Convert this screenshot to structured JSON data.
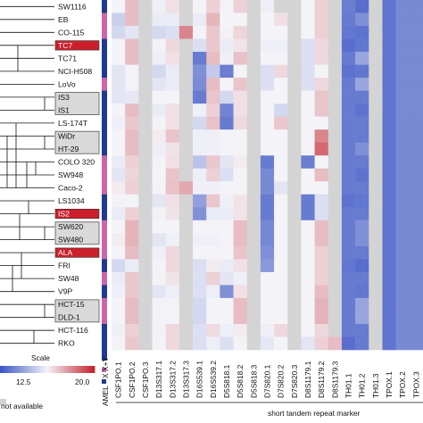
{
  "chart_data": {
    "type": "heatmap",
    "xlabel": "short tandem repeat marker",
    "scale_label": "Scale",
    "na_label": "not available",
    "scale_ticks": [
      "12.5",
      "20.0"
    ],
    "colors": {
      "low": "#3b55c4",
      "mid": "#f4f4f8",
      "high": "#c4222e",
      "na": "#d4d4d4",
      "red_label_box": "#cc1f2b",
      "group_box": "#d9d9d9"
    },
    "rows": [
      {
        "label": "SW1116",
        "highlight": "none"
      },
      {
        "label": "EB",
        "highlight": "none"
      },
      {
        "label": "CO-115",
        "highlight": "none"
      },
      {
        "label": "TC7",
        "highlight": "red"
      },
      {
        "label": "TC71",
        "highlight": "none"
      },
      {
        "label": "NCI-H508",
        "highlight": "none"
      },
      {
        "label": "LoVo",
        "highlight": "none"
      },
      {
        "label": "IS3",
        "highlight": "group"
      },
      {
        "label": "IS1",
        "highlight": "group"
      },
      {
        "label": "LS-174T",
        "highlight": "none"
      },
      {
        "label": "WiDr",
        "highlight": "group"
      },
      {
        "label": "HT-29",
        "highlight": "group"
      },
      {
        "label": "COLO 320",
        "highlight": "none"
      },
      {
        "label": "SW948",
        "highlight": "none"
      },
      {
        "label": "Caco-2",
        "highlight": "none"
      },
      {
        "label": "LS1034",
        "highlight": "none"
      },
      {
        "label": "IS2",
        "highlight": "red"
      },
      {
        "label": "SW620",
        "highlight": "group"
      },
      {
        "label": "SW480",
        "highlight": "group"
      },
      {
        "label": "ALA",
        "highlight": "red"
      },
      {
        "label": "FRI",
        "highlight": "none"
      },
      {
        "label": "SW48",
        "highlight": "none"
      },
      {
        "label": "V9P",
        "highlight": "none"
      },
      {
        "label": "HCT-15",
        "highlight": "group"
      },
      {
        "label": "DLD-1",
        "highlight": "group"
      },
      {
        "label": "HCT-116",
        "highlight": "none"
      },
      {
        "label": "RKO",
        "highlight": "none"
      }
    ],
    "amel": [
      "X",
      "X+Y",
      "X+Y",
      "X",
      "X",
      "X",
      "X+Y",
      "X",
      "X",
      "X",
      "X",
      "X",
      "X+Y",
      "X+Y",
      "X+Y",
      "X",
      "X",
      "X+Y",
      "X+Y",
      "X+Y",
      "X",
      "X+Y",
      "X",
      "X+Y",
      "X+Y",
      "X",
      "X"
    ],
    "amel_label": "AMEL",
    "amel_legend": [
      "X",
      "X+Y"
    ],
    "columns": [
      "CSF1PO.1",
      "CSF1PO.2",
      "CSF1PO.3",
      "D13S317.1",
      "D13S317.2",
      "D13S317.3",
      "D16S539.1",
      "D16S539.2",
      "D5S818.1",
      "D5S818.2",
      "D5S818.3",
      "D7S820.1",
      "D7S820.2",
      "D7S820.3",
      "D8S1179.1",
      "D8S1179.2",
      "D8S1179.3",
      "TH01.1",
      "TH01.2",
      "TH01.3",
      "TPOX.1",
      "TPOX.2",
      "TPOX.3"
    ],
    "values": [
      [
        12.5,
        14.5,
        null,
        12.3,
        13.2,
        null,
        12.4,
        13.8,
        12.4,
        13.7,
        null,
        12.2,
        null,
        null,
        12.5,
        13.8,
        null,
        6.9,
        6.2,
        null,
        6.5,
        7.5,
        7.5
      ],
      [
        10.8,
        14.5,
        null,
        12.1,
        12.1,
        null,
        12.1,
        14.7,
        12.5,
        12.5,
        null,
        12.5,
        13.2,
        null,
        12.5,
        13.8,
        null,
        6.8,
        7.8,
        null,
        6.5,
        7.5,
        7.5
      ],
      [
        11.2,
        11.8,
        null,
        11.2,
        11.5,
        16.5,
        12.4,
        14.1,
        12.6,
        13.6,
        null,
        12.5,
        12.5,
        null,
        12.5,
        13.8,
        null,
        6.6,
        6.4,
        null,
        6.5,
        7.5,
        7.5
      ],
      [
        12.5,
        14.5,
        null,
        12.4,
        13.5,
        null,
        11.5,
        14.1,
        12.1,
        13.1,
        null,
        12.3,
        12.3,
        null,
        11.5,
        13.5,
        null,
        6.2,
        6.6,
        null,
        6.5,
        7.5,
        7.5
      ],
      [
        12.5,
        14.5,
        null,
        12.2,
        13.2,
        null,
        6.8,
        14.5,
        12.3,
        14.3,
        null,
        12.5,
        12.5,
        null,
        11.5,
        13.5,
        null,
        6.8,
        8.8,
        null,
        6.5,
        7.5,
        7.5
      ],
      [
        11.8,
        12.4,
        null,
        11.2,
        12.1,
        null,
        7.8,
        10.5,
        6.9,
        12.5,
        null,
        11.5,
        13.5,
        null,
        11.5,
        12.5,
        null,
        6.4,
        6.6,
        null,
        6.5,
        7.5,
        7.5
      ],
      [
        11.8,
        12.4,
        null,
        11.8,
        12.1,
        null,
        7.6,
        14.5,
        12.5,
        14.2,
        null,
        11.5,
        12.5,
        null,
        11.5,
        13.5,
        null,
        6.8,
        8.8,
        null,
        6.5,
        7.5,
        7.5
      ],
      [
        11.8,
        11.9,
        null,
        12.5,
        12.5,
        null,
        6.8,
        14.2,
        11.2,
        13.2,
        null,
        12.5,
        12.5,
        null,
        12.5,
        14.2,
        null,
        6.8,
        6.8,
        null,
        6.5,
        7.5,
        7.5
      ],
      [
        12.5,
        14.5,
        null,
        12.1,
        13.2,
        null,
        12.3,
        13.8,
        7.2,
        13.2,
        null,
        12.5,
        11.2,
        null,
        12.5,
        14.2,
        null,
        6.8,
        6.4,
        null,
        6.5,
        7.5,
        7.5
      ],
      [
        12.3,
        14.1,
        null,
        12.4,
        13.2,
        null,
        11.2,
        14.3,
        6.8,
        13.5,
        null,
        12.5,
        14.1,
        null,
        12.5,
        12.5,
        null,
        6.8,
        6.8,
        null,
        6.5,
        7.5,
        7.5
      ],
      [
        12.5,
        14.5,
        null,
        12.8,
        14.2,
        null,
        12.3,
        12.3,
        12.5,
        12.5,
        null,
        12.5,
        12.5,
        null,
        12.5,
        16.5,
        null,
        6.8,
        6.8,
        null,
        6.5,
        7.5,
        7.5
      ],
      [
        12.5,
        14.5,
        null,
        12.2,
        13.1,
        null,
        12.3,
        12.3,
        12.5,
        12.5,
        null,
        12.5,
        12.5,
        null,
        12.5,
        17.5,
        null,
        6.8,
        7.8,
        null,
        6.5,
        7.5,
        7.5
      ],
      [
        12.1,
        13.8,
        null,
        12.4,
        13.2,
        null,
        10.2,
        14.1,
        11.8,
        12.8,
        null,
        6.8,
        12.5,
        null,
        6.9,
        12.5,
        null,
        6.8,
        6.8,
        null,
        6.5,
        7.5,
        7.5
      ],
      [
        11.8,
        13.6,
        null,
        12.5,
        14.2,
        null,
        12.2,
        13.8,
        11.5,
        12.5,
        null,
        7.5,
        12.5,
        null,
        12.5,
        14.5,
        null,
        6.8,
        6.4,
        null,
        6.5,
        7.5,
        7.5
      ],
      [
        12.8,
        13.8,
        null,
        12.4,
        14.3,
        15.2,
        12.3,
        12.3,
        12.5,
        12.5,
        null,
        7.5,
        11.8,
        null,
        12.5,
        12.5,
        null,
        6.8,
        6.8,
        null,
        6.5,
        7.5,
        7.5
      ],
      [
        12.4,
        12.4,
        null,
        11.8,
        13.2,
        null,
        8.5,
        14.1,
        12.3,
        13.1,
        null,
        6.8,
        12.5,
        null,
        6.8,
        11.5,
        null,
        6.4,
        6.6,
        null,
        6.5,
        7.5,
        7.5
      ],
      [
        12.1,
        13.8,
        null,
        12.6,
        13.1,
        null,
        7.8,
        12.1,
        12.1,
        13.1,
        null,
        6.8,
        12.5,
        null,
        6.8,
        11.5,
        null,
        6.8,
        6.8,
        null,
        6.5,
        7.5,
        7.5
      ],
      [
        12.5,
        14.8,
        null,
        12.5,
        12.5,
        null,
        12.5,
        12.5,
        12.5,
        14.5,
        null,
        7.4,
        12.5,
        null,
        12.5,
        14.5,
        null,
        6.8,
        7.8,
        null,
        6.5,
        7.5,
        7.5
      ],
      [
        12.8,
        14.8,
        null,
        11.8,
        12.3,
        null,
        12.3,
        12.3,
        12.5,
        14.5,
        null,
        7.4,
        12.5,
        null,
        12.5,
        14.5,
        null,
        6.8,
        7.8,
        null,
        6.5,
        7.5,
        7.5
      ],
      [
        12.5,
        14.5,
        null,
        12.3,
        13.5,
        null,
        12.5,
        12.5,
        12.5,
        14.2,
        null,
        7.8,
        12.5,
        null,
        12.5,
        13.8,
        null,
        6.8,
        6.8,
        null,
        6.5,
        7.5,
        7.5
      ],
      [
        11.2,
        12.1,
        null,
        12.4,
        13.5,
        null,
        11.5,
        12.8,
        12.1,
        13.2,
        null,
        8.2,
        12.5,
        null,
        12.5,
        13.8,
        null,
        6.6,
        6.2,
        null,
        6.5,
        7.5,
        7.5
      ],
      [
        12.1,
        14.1,
        null,
        12.4,
        13.1,
        null,
        11.5,
        13.8,
        11.8,
        12.3,
        null,
        12.5,
        12.5,
        null,
        12.5,
        13.8,
        null,
        6.8,
        6.8,
        null,
        6.5,
        7.5,
        7.5
      ],
      [
        12.3,
        14.1,
        null,
        11.8,
        12.2,
        null,
        11.5,
        12.2,
        7.8,
        13.2,
        null,
        12.5,
        12.5,
        null,
        12.5,
        14.5,
        null,
        6.8,
        6.6,
        null,
        6.5,
        7.5,
        7.5
      ],
      [
        12.5,
        14.5,
        null,
        12.4,
        12.4,
        null,
        11.2,
        12.5,
        12.5,
        14.5,
        null,
        12.5,
        12.5,
        null,
        12.5,
        14.8,
        null,
        6.8,
        8.8,
        null,
        6.5,
        7.5,
        7.5
      ],
      [
        12.5,
        14.5,
        null,
        12.4,
        12.4,
        null,
        11.2,
        12.5,
        12.5,
        14.5,
        null,
        12.5,
        12.5,
        null,
        12.5,
        14.8,
        null,
        6.8,
        8.8,
        null,
        6.5,
        7.5,
        7.5
      ],
      [
        12.3,
        13.8,
        null,
        12.6,
        13.5,
        null,
        11.5,
        13.4,
        12.3,
        12.8,
        null,
        12.3,
        13.5,
        null,
        12.5,
        13.5,
        null,
        6.8,
        6.8,
        null,
        6.5,
        7.5,
        7.5
      ],
      [
        12.4,
        14.1,
        null,
        12.4,
        13.5,
        null,
        11.5,
        12.2,
        11.5,
        12.4,
        null,
        11.9,
        12.5,
        null,
        11.8,
        13.8,
        14.5,
        6.2,
        6.8,
        null,
        6.5,
        7.5,
        7.5
      ]
    ]
  }
}
